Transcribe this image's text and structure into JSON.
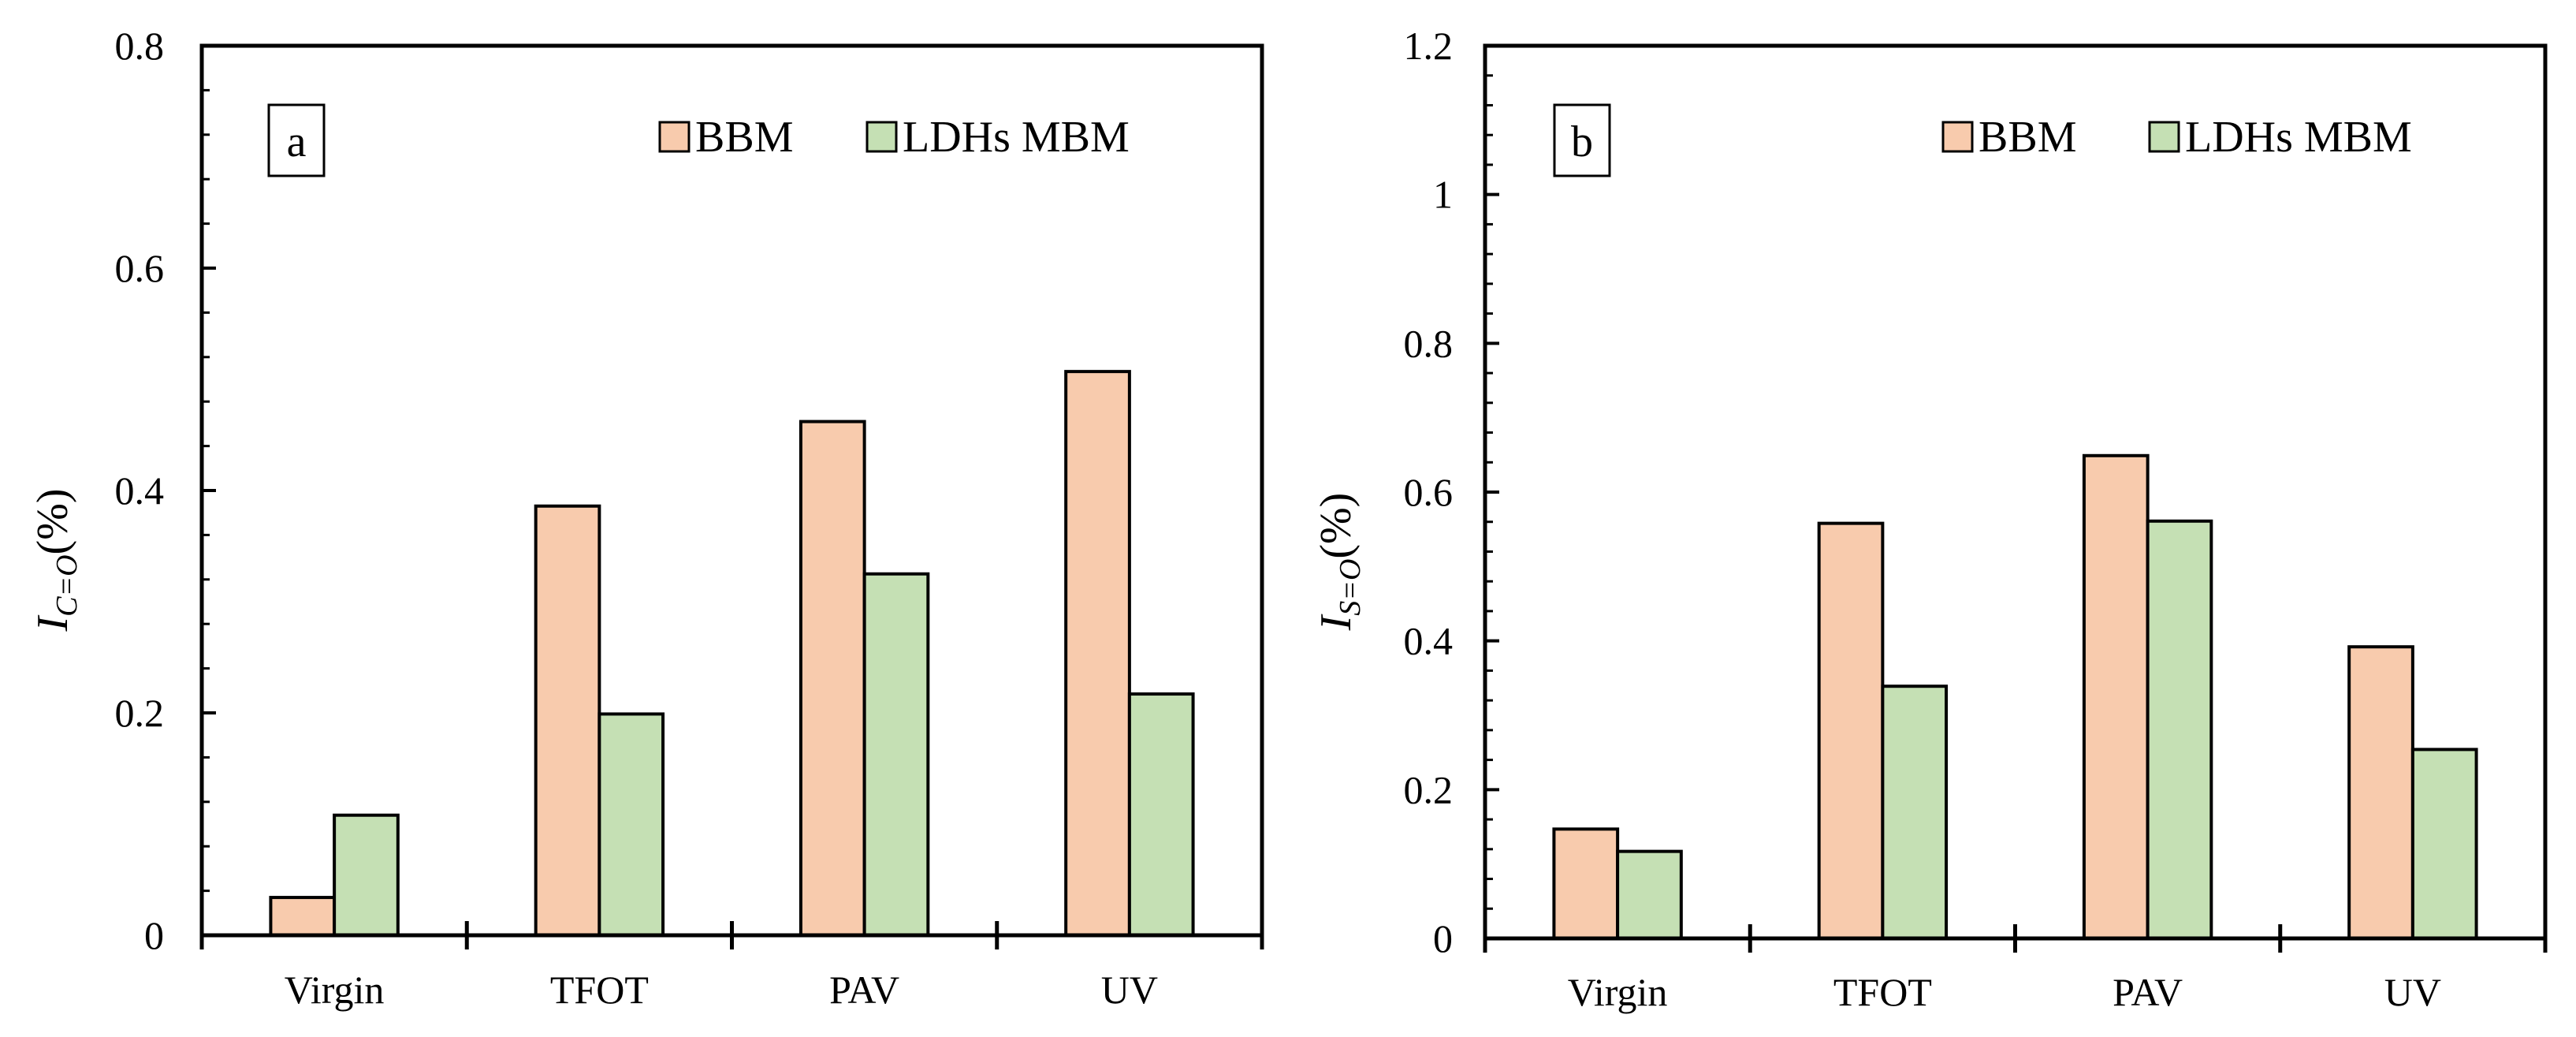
{
  "colors": {
    "bbm": "#F8CBAD",
    "ldhs_mbm": "#C5E0B4",
    "stroke": "#000000"
  },
  "chart_data": [
    {
      "type": "bar",
      "panel_label": "a",
      "categories": [
        "Virgin",
        "TFOT",
        "PAV",
        "UV"
      ],
      "series": [
        {
          "name": "BBM",
          "values": [
            0.034,
            0.386,
            0.462,
            0.507
          ]
        },
        {
          "name": "LDHs MBM",
          "values": [
            0.108,
            0.199,
            0.325,
            0.217
          ]
        }
      ],
      "ylabel": {
        "main": "I",
        "sub": "C=O",
        "suffix": "(%)"
      },
      "ylim": [
        0,
        0.8
      ],
      "yticks": [
        "0",
        "0.2",
        "0.4",
        "0.6",
        "0.8"
      ],
      "ytick_values": [
        0,
        0.2,
        0.4,
        0.6,
        0.8
      ],
      "legend_position": "top-right",
      "grid": false
    },
    {
      "type": "bar",
      "panel_label": "b",
      "categories": [
        "Virgin",
        "TFOT",
        "PAV",
        "UV"
      ],
      "series": [
        {
          "name": "BBM",
          "values": [
            0.147,
            0.558,
            0.649,
            0.392
          ]
        },
        {
          "name": "LDHs MBM",
          "values": [
            0.117,
            0.339,
            0.561,
            0.254
          ]
        }
      ],
      "ylabel": {
        "main": "I",
        "sub": "S=O",
        "suffix": "(%)"
      },
      "ylim": [
        0,
        1.2
      ],
      "yticks": [
        "0",
        "0.2",
        "0.4",
        "0.6",
        "0.8",
        "1",
        "1.2"
      ],
      "ytick_values": [
        0,
        0.2,
        0.4,
        0.6,
        0.8,
        1.0,
        1.2
      ],
      "legend_position": "top-right",
      "grid": false
    }
  ]
}
